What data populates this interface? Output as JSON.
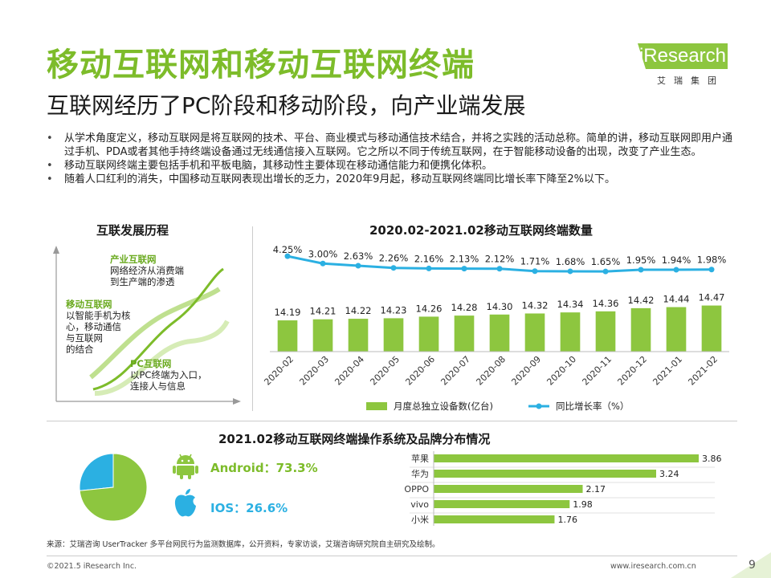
{
  "header": {
    "title": "移动互联网和移动互联网终端",
    "subtitle": "互联网经历了PC阶段和移动阶段，向产业端发展",
    "logo_word": "iResearch",
    "logo_cn": "艾瑞集团"
  },
  "bullets": [
    "从学术角度定义，移动互联网是将互联网的技术、平台、商业模式与移动通信技术结合，并将之实践的活动总称。简单的讲，移动互联网即用户通过手机、PDA或者其他手持终端设备通过无线通信接入互联网。它之所以不同于传统互联网，在于智能移动设备的出现，改变了产业生态。",
    "移动互联网终端主要包括手机和平板电脑，其移动性主要体现在移动通信能力和便携化体积。",
    "随着人口红利的消失，中国移动互联网表现出增长的乏力，2020年9月起，移动互联网终端同比增长率下降至2%以下。"
  ],
  "history": {
    "title": "互联发展历程",
    "stages": [
      {
        "name": "产业互联网",
        "desc": [
          "网络经济从消费端",
          "到生产端的渗透"
        ]
      },
      {
        "name": "移动互联网",
        "desc": [
          "以智能手机为核",
          "心，移动通信",
          "与互联网",
          "的结合"
        ]
      },
      {
        "name": "PC互联网",
        "desc": [
          "以PC终端为入口，",
          "连接人与信息"
        ]
      }
    ],
    "colors": {
      "curve": "#7dbc2a",
      "curve_light": "#d6ecb6",
      "axis": "#999999"
    }
  },
  "chart_data": [
    {
      "type": "bar",
      "title": "2020.02-2021.02移动互联网终端数量",
      "categories": [
        "2020-02",
        "2020-03",
        "2020-04",
        "2020-05",
        "2020-06",
        "2020-07",
        "2020-08",
        "2020-09",
        "2020-10",
        "2020-11",
        "2020-12",
        "2021-01",
        "2021-02"
      ],
      "series": [
        {
          "name": "月度总独立设备数(亿台)",
          "kind": "bar",
          "color": "#8dc63f",
          "values": [
            14.19,
            14.21,
            14.22,
            14.23,
            14.26,
            14.28,
            14.3,
            14.32,
            14.34,
            14.36,
            14.42,
            14.44,
            14.47
          ],
          "labels": [
            "14.19",
            "14.21",
            "14.22",
            "14.23",
            "14.26",
            "14.28",
            "14.30",
            "14.32",
            "14.34",
            "14.36",
            "14.42",
            "14.44",
            "14.47"
          ]
        },
        {
          "name": "同比增长率（%）",
          "kind": "line",
          "color": "#2bb0e2",
          "values": [
            4.25,
            3.0,
            2.63,
            2.26,
            2.16,
            2.13,
            2.12,
            1.71,
            1.68,
            1.65,
            1.95,
            1.94,
            1.98
          ],
          "labels": [
            "4.25%",
            "3.00%",
            "2.63%",
            "2.26%",
            "2.16%",
            "2.13%",
            "2.12%",
            "1.71%",
            "1.68%",
            "1.65%",
            "1.95%",
            "1.94%",
            "1.98%"
          ]
        }
      ],
      "legend_position": "bottom"
    },
    {
      "type": "pie",
      "title": "2021.02移动互联网终端操作系统及品牌分布情况",
      "slices": [
        {
          "name": "Android",
          "value": 73.3,
          "label": "Android：73.3%",
          "color": "#8dc63f"
        },
        {
          "name": "IOS",
          "value": 26.6,
          "label": "IOS：26.6%",
          "color": "#2bb0e2"
        }
      ]
    },
    {
      "type": "bar",
      "orientation": "horizontal",
      "categories": [
        "苹果",
        "华为",
        "OPPO",
        "vivo",
        "小米"
      ],
      "values": [
        3.86,
        3.24,
        2.17,
        1.98,
        1.76
      ],
      "labels": [
        "3.86",
        "3.24",
        "2.17",
        "1.98",
        "1.76"
      ],
      "xlim": [
        0,
        3.86
      ],
      "color": "#8dc63f"
    }
  ],
  "footer": {
    "source": "来源：艾瑞咨询 UserTracker 多平台网民行为监测数据库，公开资料，专家访谈，艾瑞咨询研究院自主研究及绘制。",
    "copyright": "©2021.5 iResearch Inc.",
    "website": "www.iresearch.com.cn",
    "page": "9"
  },
  "colors": {
    "brand_green": "#7dbc2a",
    "accent_blue": "#2bb0e2",
    "bar_green": "#8dc63f"
  }
}
